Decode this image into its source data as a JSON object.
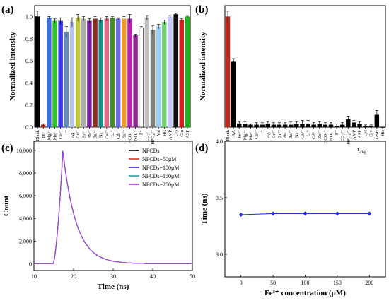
{
  "panels": {
    "a": {
      "label": "(a)"
    },
    "b": {
      "label": "(b)"
    },
    "c": {
      "label": "(c)"
    },
    "d": {
      "label": "(d)"
    }
  },
  "chart_data": [
    {
      "panel": "a",
      "type": "bar",
      "ylabel": "Normalized intensity",
      "ylim": [
        0,
        1.1
      ],
      "yticks": [
        "0.0",
        "0.2",
        "0.4",
        "0.6",
        "0.8",
        "1.0"
      ],
      "categories": [
        "Blank",
        "Fe³⁺",
        "Mg²⁺",
        "Mn²⁺",
        "Cu²⁺",
        "I⁻",
        "Ag⁺",
        "Cr³⁺",
        "Sr²⁺",
        "Pb²⁺",
        "Ba²⁺",
        "Na⁺",
        "Ca²⁺",
        "Li⁺",
        "Cd²⁺",
        "Zn²⁺",
        "HCO₃⁻",
        "NO₃⁻",
        "F⁻",
        "CO₃²⁻",
        "HPO₄²⁻",
        "Val",
        "His",
        "AMP",
        "Lys",
        "Glu",
        "ASP"
      ],
      "values": [
        1.0,
        0.02,
        0.99,
        0.96,
        0.96,
        0.86,
        0.95,
        0.99,
        0.98,
        0.96,
        0.98,
        0.97,
        0.98,
        0.99,
        0.98,
        0.98,
        0.98,
        0.83,
        0.9,
        0.99,
        0.88,
        0.91,
        0.95,
        1.0,
        1.02,
        0.97,
        1.0
      ],
      "errors": [
        0.05,
        0.01,
        0.01,
        0.02,
        0.03,
        0.05,
        0.04,
        0.03,
        0.02,
        0.02,
        0.02,
        0.02,
        0.02,
        0.01,
        0.01,
        0.02,
        0.04,
        0.01,
        0.01,
        0.02,
        0.04,
        0.02,
        0.02,
        0.01,
        0.01,
        0.01,
        0.01
      ],
      "colors": [
        "#000000",
        "#c0281c",
        "#3b6fe0",
        "#2ec52a",
        "#3a3aea",
        "#5f8fb8",
        "#b7c4ea",
        "#c2c83a",
        "#aeaeae",
        "#7a1fa0",
        "#8a2e20",
        "#1c8c8c",
        "#e06a8c",
        "#4b8c30",
        "#6a6ae8",
        "#f09a2a",
        "#b028b0",
        "#8f2a8f",
        "#ffffff",
        "#bfbfbf",
        "#808080",
        "#9ad0f0",
        "#6fd06f",
        "#c8c8ff",
        "#101010",
        "#d02020",
        "#20b020"
      ]
    },
    {
      "panel": "b",
      "type": "bar",
      "ylabel": "Normalized intensity",
      "ylim": [
        0,
        1.1
      ],
      "categories": [
        "Blank",
        "AA",
        "Fe³⁺",
        "Mg²⁺",
        "Mn²⁺",
        "Cu²⁺",
        "I⁻",
        "Ag⁺",
        "Cr³⁺",
        "Sr²⁺",
        "Pb²⁺",
        "Ba²⁺",
        "Na⁺",
        "Ca²⁺",
        "Li⁺",
        "Cd²⁺",
        "Zn²⁺",
        "HCO₃⁻",
        "NO₃⁻",
        "F⁻",
        "CO₃²⁻",
        "HPO₄²⁻",
        "AMP",
        "ASP",
        "Lys",
        "Gly",
        "GSH",
        "His"
      ],
      "values": [
        1.0,
        0.59,
        0.03,
        0.03,
        0.02,
        0.02,
        0.02,
        0.03,
        0.02,
        0.02,
        0.02,
        0.02,
        0.03,
        0.03,
        0.03,
        0.02,
        0.03,
        0.02,
        0.02,
        0.01,
        0.02,
        0.07,
        0.04,
        0.03,
        0.01,
        0.01,
        0.11,
        0.0
      ],
      "errors": [
        0.05,
        0.03,
        0.02,
        0.02,
        0.01,
        0.02,
        0.02,
        0.02,
        0.02,
        0.02,
        0.02,
        0.03,
        0.02,
        0.03,
        0.03,
        0.02,
        0.02,
        0.02,
        0.02,
        0.02,
        0.02,
        0.03,
        0.02,
        0.02,
        0.01,
        0.01,
        0.04,
        0.0
      ],
      "colors": [
        "#c0281c",
        "#000000",
        "#000000",
        "#000000",
        "#000000",
        "#000000",
        "#000000",
        "#000000",
        "#000000",
        "#000000",
        "#000000",
        "#000000",
        "#000000",
        "#000000",
        "#000000",
        "#000000",
        "#000000",
        "#000000",
        "#000000",
        "#000000",
        "#000000",
        "#000000",
        "#000000",
        "#000000",
        "#000000",
        "#000000",
        "#000000",
        "#000000"
      ]
    },
    {
      "panel": "c",
      "type": "line",
      "xlabel": "Time (ns)",
      "ylabel": "Count",
      "xlim": [
        10,
        50
      ],
      "ylim": [
        -600,
        10800
      ],
      "xticks": [
        "10",
        "20",
        "30",
        "40",
        "50"
      ],
      "yticks": [
        "0",
        "2,000",
        "4,000",
        "6,000",
        "8,000",
        "10,000"
      ],
      "series": [
        {
          "name": "NFCDs",
          "color": "#000000"
        },
        {
          "name": "NFCDs+50μM",
          "color": "#d83a1e"
        },
        {
          "name": "NFCDs+100μM",
          "color": "#3030d0"
        },
        {
          "name": "NFCDs+150μM",
          "color": "#2aa3a3"
        },
        {
          "name": "NFCDs+200μM",
          "color": "#b040e0"
        }
      ],
      "peak": {
        "x": 17.3,
        "y": 9950
      },
      "rise_start": 14.8,
      "decay_tau": 3.35
    },
    {
      "panel": "d",
      "type": "line",
      "xlabel": "Fe³⁺ concentration (μM)",
      "ylabel": "Time (ns)",
      "legend": "τavg",
      "xlim": [
        -25,
        225
      ],
      "ylim": [
        2.8,
        4.0
      ],
      "xticks": [
        "0",
        "50",
        "100",
        "150",
        "200"
      ],
      "yticks": [
        "3.0",
        "3.5",
        "4.0"
      ],
      "x": [
        0,
        50,
        100,
        150,
        200
      ],
      "y": [
        3.35,
        3.36,
        3.36,
        3.36,
        3.36
      ],
      "color": "#2636c8"
    }
  ]
}
